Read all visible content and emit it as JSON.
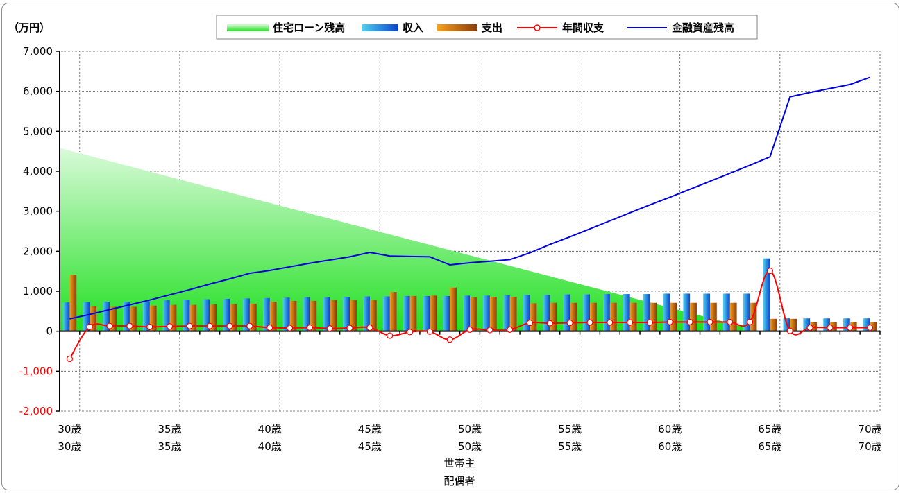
{
  "chart_data": {
    "type": "bar",
    "unit_label": "（万円）",
    "ylim": [
      -2000,
      7000
    ],
    "y_ticks": [
      7000,
      6000,
      5000,
      4000,
      3000,
      2000,
      1000,
      0,
      -1000,
      -2000
    ],
    "y_tick_labels": [
      "7,000",
      "6,000",
      "5,000",
      "4,000",
      "3,000",
      "2,000",
      "1,000",
      "0",
      "-1,000",
      "-2,000"
    ],
    "grid": true,
    "legend_position": "top",
    "x": [
      30,
      31,
      32,
      33,
      34,
      35,
      36,
      37,
      38,
      39,
      40,
      41,
      42,
      43,
      44,
      45,
      46,
      47,
      48,
      49,
      50,
      51,
      52,
      53,
      54,
      55,
      56,
      57,
      58,
      59,
      60,
      61,
      62,
      63,
      64,
      65,
      66,
      67,
      68,
      69,
      70
    ],
    "x_tick_ages": [
      30,
      35,
      40,
      45,
      50,
      55,
      60,
      65,
      70
    ],
    "x_tick_labels_row1": [
      "30歳",
      "35歳",
      "40歳",
      "45歳",
      "50歳",
      "55歳",
      "60歳",
      "65歳",
      "70歳"
    ],
    "x_tick_labels_row2": [
      "30歳",
      "35歳",
      "40歳",
      "45歳",
      "50歳",
      "55歳",
      "60歳",
      "65歳",
      "70歳"
    ],
    "x_axis_label_1": "世帯主",
    "x_axis_label_2": "配偶者",
    "series": [
      {
        "name": "住宅ローン残高",
        "kind": "area",
        "color": "#33ee33",
        "points": [
          [
            30,
            4580
          ],
          [
            64,
            0
          ]
        ]
      },
      {
        "name": "収入",
        "kind": "bar",
        "color": "#1e90e0",
        "values": [
          720,
          730,
          740,
          740,
          750,
          780,
          790,
          800,
          810,
          820,
          830,
          840,
          850,
          850,
          860,
          870,
          870,
          880,
          880,
          880,
          890,
          890,
          900,
          910,
          910,
          920,
          920,
          930,
          930,
          930,
          940,
          940,
          940,
          940,
          940,
          1820,
          320,
          320,
          320,
          320,
          320
        ]
      },
      {
        "name": "支出",
        "kind": "bar",
        "color": "#d97a10",
        "values": [
          1410,
          620,
          610,
          610,
          640,
          660,
          660,
          670,
          680,
          690,
          740,
          760,
          760,
          780,
          780,
          780,
          980,
          880,
          890,
          1090,
          850,
          860,
          860,
          700,
          710,
          710,
          710,
          710,
          710,
          710,
          710,
          710,
          710,
          710,
          710,
          310,
          310,
          230,
          230,
          230,
          230
        ]
      },
      {
        "name": "年間収支",
        "kind": "line",
        "color": "#ff0000",
        "values": [
          -690,
          110,
          130,
          130,
          110,
          120,
          130,
          130,
          130,
          130,
          90,
          80,
          90,
          70,
          80,
          90,
          -110,
          -20,
          -10,
          -210,
          40,
          30,
          40,
          210,
          200,
          210,
          220,
          220,
          220,
          220,
          230,
          230,
          230,
          230,
          230,
          1510,
          10,
          90,
          90,
          90,
          90
        ]
      },
      {
        "name": "金融資産残高",
        "kind": "line",
        "color": "#0000dd",
        "values": [
          310,
          420,
          540,
          660,
          780,
          910,
          1040,
          1180,
          1310,
          1450,
          1520,
          1610,
          1700,
          1780,
          1860,
          1970,
          1880,
          1870,
          1860,
          1660,
          1710,
          1750,
          1790,
          1960,
          2170,
          2360,
          2560,
          2760,
          2960,
          3160,
          3350,
          3550,
          3750,
          3950,
          4150,
          4360,
          5860,
          5970,
          6070,
          6170,
          6350
        ]
      }
    ]
  }
}
